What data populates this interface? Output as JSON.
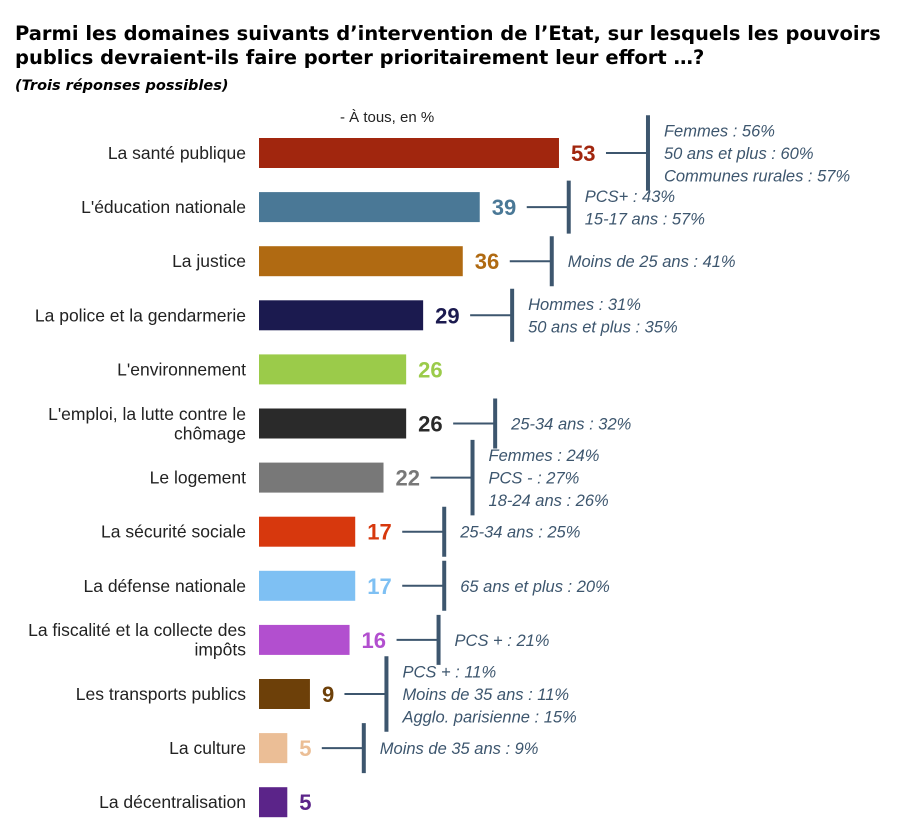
{
  "title": "Parmi les domaines suivants d’intervention de l’Etat, sur lesquels les pouvoirs publics devraient-ils faire porter prioritairement leur effort …?",
  "subtitle": "(Trois réponses possibles)",
  "unit_label": "- À tous, en %",
  "chart_data": {
    "type": "bar",
    "orientation": "horizontal",
    "unit": "%",
    "categories": [
      "La santé publique",
      "L'éducation nationale",
      "La justice",
      "La police et la gendarmerie",
      "L'environnement",
      "L'emploi, la lutte contre le chômage",
      "Le logement",
      "La sécurité sociale",
      "La défense nationale",
      "La fiscalité et la collecte des impôts",
      "Les transports publics",
      "La culture",
      "La décentralisation"
    ],
    "category_lines": [
      [
        "La santé publique"
      ],
      [
        "L'éducation nationale"
      ],
      [
        "La justice"
      ],
      [
        "La police et la gendarmerie"
      ],
      [
        "L'environnement"
      ],
      [
        "L'emploi, la lutte contre le",
        "chômage"
      ],
      [
        "Le logement"
      ],
      [
        "La sécurité sociale"
      ],
      [
        "La défense nationale"
      ],
      [
        "La fiscalité et la collecte des",
        "impôts"
      ],
      [
        "Les transports publics"
      ],
      [
        "La culture"
      ],
      [
        "La décentralisation"
      ]
    ],
    "values": [
      53,
      39,
      36,
      29,
      26,
      26,
      22,
      17,
      17,
      16,
      9,
      5,
      5
    ],
    "colors": [
      "#A1260E",
      "#4A7896",
      "#B06A12",
      "#1B1A4F",
      "#9BCB4A",
      "#2A2A2A",
      "#787878",
      "#D7380D",
      "#7EC0F3",
      "#B24FCF",
      "#6D4009",
      "#EBBE96",
      "#5B2489"
    ],
    "annotations": [
      [
        "Femmes : 56%",
        "50 ans et plus : 60%",
        "Communes rurales : 57%"
      ],
      [
        "PCS+ : 43%",
        "15-17 ans : 57%"
      ],
      [
        "Moins de 25 ans : 41%"
      ],
      [
        "Hommes : 31%",
        "50 ans et plus : 35%"
      ],
      [],
      [
        "25-34 ans : 32%"
      ],
      [
        "Femmes : 24%",
        "PCS - : 27%",
        "18-24 ans : 26%"
      ],
      [
        "25-34 ans : 25%"
      ],
      [
        "65 ans et plus : 20%"
      ],
      [
        "PCS + : 21%"
      ],
      [
        "PCS + : 11%",
        "Moins de 35 ans : 11%",
        "Agglo. parisienne : 15%"
      ],
      [
        "Moins de 35 ans : 9%"
      ],
      []
    ],
    "annotation_color": "#3D566E"
  }
}
